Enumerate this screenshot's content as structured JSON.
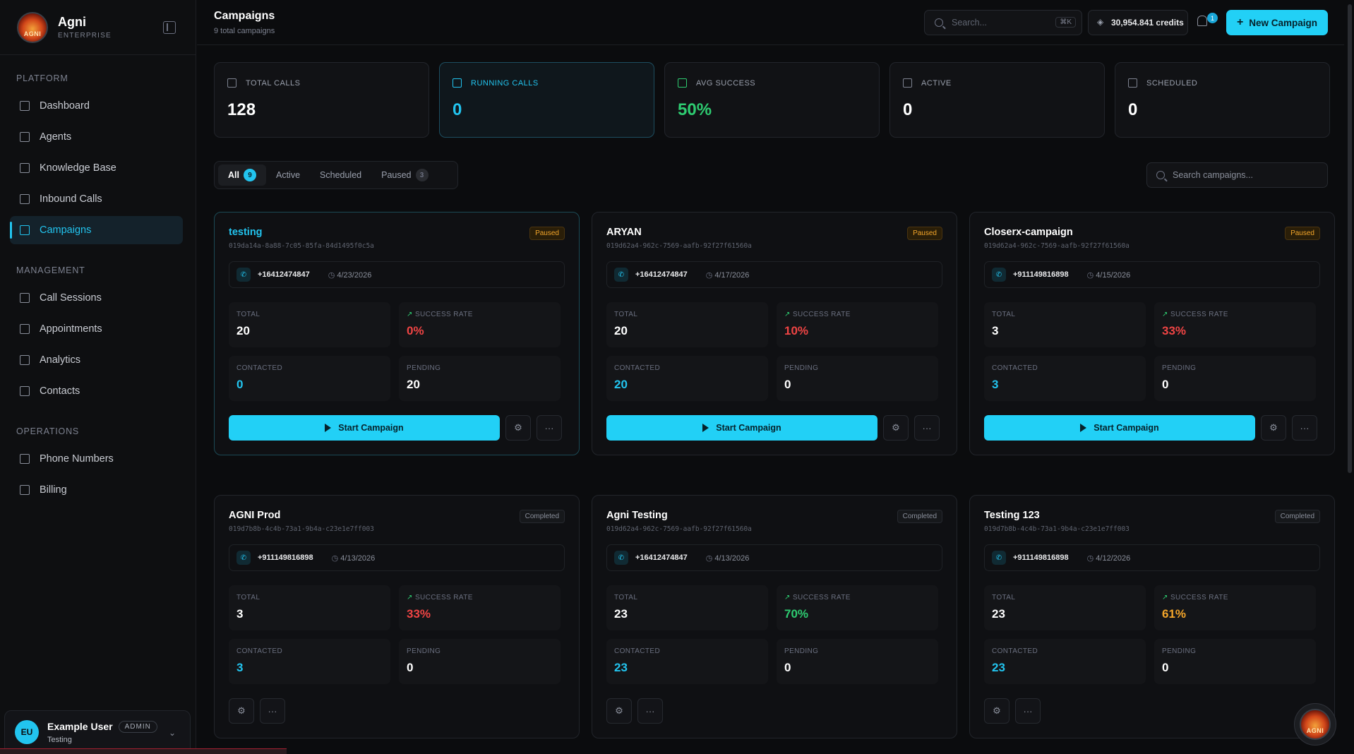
{
  "brand": {
    "name": "Agni",
    "sub": "ENTERPRISE",
    "logo_text": "AGNI"
  },
  "nav": {
    "platform_label": "PLATFORM",
    "platform": [
      {
        "label": "Dashboard",
        "icon": "grid-icon"
      },
      {
        "label": "Agents",
        "icon": "users-icon"
      },
      {
        "label": "Knowledge Base",
        "icon": "library-icon"
      },
      {
        "label": "Inbound Calls",
        "icon": "table-icon"
      },
      {
        "label": "Campaigns",
        "icon": "megaphone-icon",
        "active": true
      }
    ],
    "management_label": "MANAGEMENT",
    "management": [
      {
        "label": "Call Sessions",
        "icon": "phone-icon"
      },
      {
        "label": "Appointments",
        "icon": "calendar-icon"
      },
      {
        "label": "Analytics",
        "icon": "chart-icon"
      },
      {
        "label": "Contacts",
        "icon": "contact-icon"
      }
    ],
    "operations_label": "OPERATIONS",
    "operations": [
      {
        "label": "Phone Numbers",
        "icon": "phone-icon"
      },
      {
        "label": "Billing",
        "icon": "card-icon"
      }
    ]
  },
  "user": {
    "initials": "EU",
    "name": "Example User",
    "role": "ADMIN",
    "sub": "Testing"
  },
  "header": {
    "title": "Campaigns",
    "subtitle": "9 total campaigns",
    "search_placeholder": "Search...",
    "search_kbd": "⌘K",
    "credits": "30,954.841 credits",
    "notifications": "1",
    "new_button": "New Campaign"
  },
  "stats": [
    {
      "label": "TOTAL CALLS",
      "value": "128",
      "icon": "users-icon"
    },
    {
      "label": "RUNNING CALLS",
      "value": "0",
      "icon": "phone-icon"
    },
    {
      "label": "AVG SUCCESS",
      "value": "50%",
      "icon": "trend-icon"
    },
    {
      "label": "ACTIVE",
      "value": "0",
      "icon": "calendar-icon"
    },
    {
      "label": "SCHEDULED",
      "value": "0",
      "icon": "calendar-icon"
    }
  ],
  "filters": {
    "all": "All",
    "all_count": "9",
    "active": "Active",
    "scheduled": "Scheduled",
    "paused": "Paused",
    "paused_count": "3",
    "search_placeholder": "Search campaigns..."
  },
  "labels": {
    "total": "TOTAL",
    "success": "SUCCESS RATE",
    "contacted": "CONTACTED",
    "pending": "PENDING",
    "start": "Start Campaign"
  },
  "campaigns": [
    {
      "name": "testing",
      "id": "019da14a-8a88-7c05-85fa-84d1495f0c5a",
      "status": "Paused",
      "phone": "+16412474847",
      "date": "4/23/2026",
      "total": "20",
      "success": "0%",
      "contacted": "0",
      "pending": "20"
    },
    {
      "name": "ARYAN",
      "id": "019d62a4-962c-7569-aafb-92f27f61560a",
      "status": "Paused",
      "phone": "+16412474847",
      "date": "4/17/2026",
      "total": "20",
      "success": "10%",
      "contacted": "20",
      "pending": "0"
    },
    {
      "name": "Closerx-campaign",
      "id": "019d62a4-962c-7569-aafb-92f27f61560a",
      "status": "Paused",
      "phone": "+911149816898",
      "date": "4/15/2026",
      "total": "3",
      "success": "33%",
      "contacted": "3",
      "pending": "0"
    },
    {
      "name": "AGNI Prod",
      "id": "019d7b8b-4c4b-73a1-9b4a-c23e1e7ff003",
      "status": "Completed",
      "phone": "+911149816898",
      "date": "4/13/2026",
      "total": "3",
      "success": "33%",
      "contacted": "3",
      "pending": "0"
    },
    {
      "name": "Agni Testing",
      "id": "019d62a4-962c-7569-aafb-92f27f61560a",
      "status": "Completed",
      "phone": "+16412474847",
      "date": "4/13/2026",
      "total": "23",
      "success": "70%",
      "contacted": "23",
      "pending": "0"
    },
    {
      "name": "Testing 123",
      "id": "019d7b8b-4c4b-73a1-9b4a-c23e1e7ff003",
      "status": "Completed",
      "phone": "+911149816898",
      "date": "4/12/2026",
      "total": "23",
      "success": "61%",
      "contacted": "23",
      "pending": "0"
    }
  ]
}
